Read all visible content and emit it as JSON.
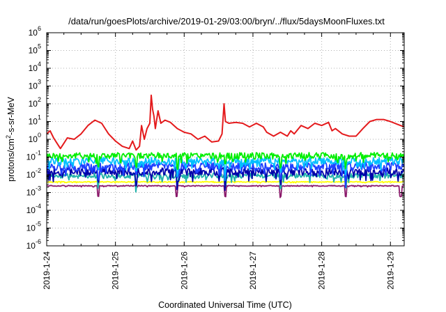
{
  "chart_data": {
    "type": "line",
    "title": "/data/run/goesPlots/archive/2019-01-29/03:00/bryn/../flux/5daysMoonFluxes.txt",
    "xlabel": "Coordinated Universal Time (UTC)",
    "ylabel_parts": [
      "protons/cm",
      "2",
      "-s-sr-MeV"
    ],
    "yscale": "log",
    "ylim": [
      1e-06,
      1000000.0
    ],
    "xlim": [
      0,
      5.2
    ],
    "grid": true,
    "y_tick_exponents": [
      "-6",
      "-5",
      "-4",
      "-3",
      "-2",
      "-1",
      "0",
      "1",
      "2",
      "3",
      "4",
      "5",
      "6"
    ],
    "x_ticks": [
      {
        "x": 0,
        "label": "2019-1-24"
      },
      {
        "x": 1,
        "label": "2019-1-25"
      },
      {
        "x": 2,
        "label": "2019-1-26"
      },
      {
        "x": 3,
        "label": "2019-1-27"
      },
      {
        "x": 4,
        "label": "2019-1-28"
      },
      {
        "x": 5,
        "label": "2019-1-29"
      }
    ],
    "series": [
      {
        "color": "#e41a1c",
        "values": [
          [
            0.0,
            2.0
          ],
          [
            0.05,
            3.0
          ],
          [
            0.1,
            1.2
          ],
          [
            0.15,
            0.6
          ],
          [
            0.2,
            0.3
          ],
          [
            0.25,
            0.6
          ],
          [
            0.3,
            1.2
          ],
          [
            0.4,
            1.0
          ],
          [
            0.5,
            2.0
          ],
          [
            0.6,
            6.0
          ],
          [
            0.7,
            12.0
          ],
          [
            0.8,
            8.0
          ],
          [
            0.9,
            2.0
          ],
          [
            1.0,
            0.8
          ],
          [
            1.1,
            0.4
          ],
          [
            1.2,
            0.3
          ],
          [
            1.25,
            0.8
          ],
          [
            1.3,
            0.25
          ],
          [
            1.35,
            0.4
          ],
          [
            1.38,
            6.0
          ],
          [
            1.42,
            1.0
          ],
          [
            1.46,
            4.0
          ],
          [
            1.5,
            8.0
          ],
          [
            1.52,
            300.0
          ],
          [
            1.54,
            50.0
          ],
          [
            1.56,
            20.0
          ],
          [
            1.58,
            4.0
          ],
          [
            1.62,
            40.0
          ],
          [
            1.66,
            8.0
          ],
          [
            1.72,
            12.0
          ],
          [
            1.8,
            9.0
          ],
          [
            1.9,
            4.0
          ],
          [
            2.0,
            2.5
          ],
          [
            2.1,
            2.0
          ],
          [
            2.2,
            1.0
          ],
          [
            2.3,
            1.5
          ],
          [
            2.4,
            0.7
          ],
          [
            2.5,
            0.8
          ],
          [
            2.55,
            2.0
          ],
          [
            2.58,
            100.0
          ],
          [
            2.6,
            10.0
          ],
          [
            2.65,
            8.0
          ],
          [
            2.75,
            9.0
          ],
          [
            2.85,
            8.0
          ],
          [
            2.95,
            5.0
          ],
          [
            3.05,
            8.0
          ],
          [
            3.15,
            5.0
          ],
          [
            3.2,
            2.5
          ],
          [
            3.3,
            1.5
          ],
          [
            3.4,
            2.5
          ],
          [
            3.5,
            1.5
          ],
          [
            3.55,
            3.0
          ],
          [
            3.6,
            2.0
          ],
          [
            3.7,
            6.0
          ],
          [
            3.8,
            4.0
          ],
          [
            3.9,
            8.0
          ],
          [
            4.0,
            6.0
          ],
          [
            4.1,
            9.0
          ],
          [
            4.15,
            3.0
          ],
          [
            4.2,
            4.0
          ],
          [
            4.3,
            2.0
          ],
          [
            4.4,
            1.5
          ],
          [
            4.5,
            1.5
          ],
          [
            4.6,
            4.0
          ],
          [
            4.7,
            10.0
          ],
          [
            4.8,
            13.0
          ],
          [
            4.9,
            13.0
          ],
          [
            5.0,
            10.0
          ],
          [
            5.1,
            7.0
          ],
          [
            5.2,
            5.0
          ]
        ]
      },
      {
        "color": "#00ee00",
        "base": 0.12,
        "amp": 0.35,
        "dips": [
          0.75,
          1.3,
          1.9,
          2.6,
          3.4,
          4.35
        ]
      },
      {
        "color": "#00bfff",
        "base": 0.06,
        "amp": 0.4,
        "dips": [
          0.75,
          1.3,
          1.9,
          2.6,
          3.4,
          4.35
        ]
      },
      {
        "color": "#1f3fff",
        "base": 0.03,
        "amp": 0.45,
        "dips": [
          0.75,
          1.3,
          1.9,
          2.6,
          3.4,
          4.35
        ]
      },
      {
        "color": "#0000aa",
        "base": 0.015,
        "amp": 0.45,
        "dips": [
          0.75,
          1.3,
          1.9,
          2.6,
          3.4,
          4.35
        ]
      },
      {
        "color": "#20b2aa",
        "base": 0.009,
        "amp": 0.3,
        "dips": [
          0.75,
          1.3,
          1.9,
          2.6,
          3.4,
          4.35
        ]
      },
      {
        "color": "#ffff00",
        "base": 0.004,
        "amp": 0.05,
        "dips": []
      },
      {
        "color": "#8b1a6b",
        "base": 0.0024,
        "amp": 0.05,
        "dips": [
          0.75,
          1.89,
          2.6,
          3.4,
          4.35,
          5.15
        ]
      }
    ]
  }
}
